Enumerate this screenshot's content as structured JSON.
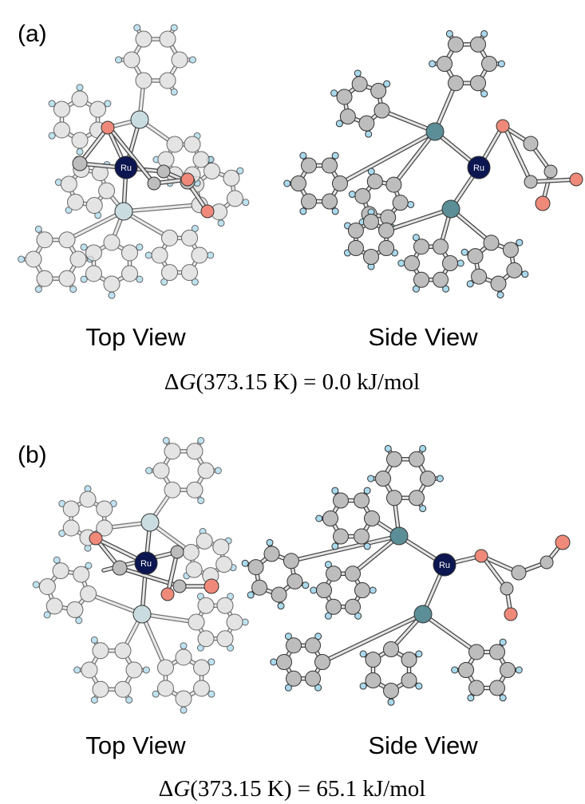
{
  "panels": [
    {
      "label": "(a)",
      "views": [
        {
          "caption": "Top View",
          "metal": "Ru"
        },
        {
          "caption": "Side View",
          "metal": "Ru"
        }
      ],
      "energy": {
        "delta": "Δ",
        "symbol": "G",
        "text": "(373.15 K) = 0.0 kJ/mol"
      }
    },
    {
      "label": "(b)",
      "views": [
        {
          "caption": "Top View",
          "metal": "Ru"
        },
        {
          "caption": "Side View",
          "metal": "Ru"
        }
      ],
      "energy": {
        "delta": "Δ",
        "symbol": "G",
        "text": "(373.15 K) = 65.1 kJ/mol"
      }
    }
  ]
}
